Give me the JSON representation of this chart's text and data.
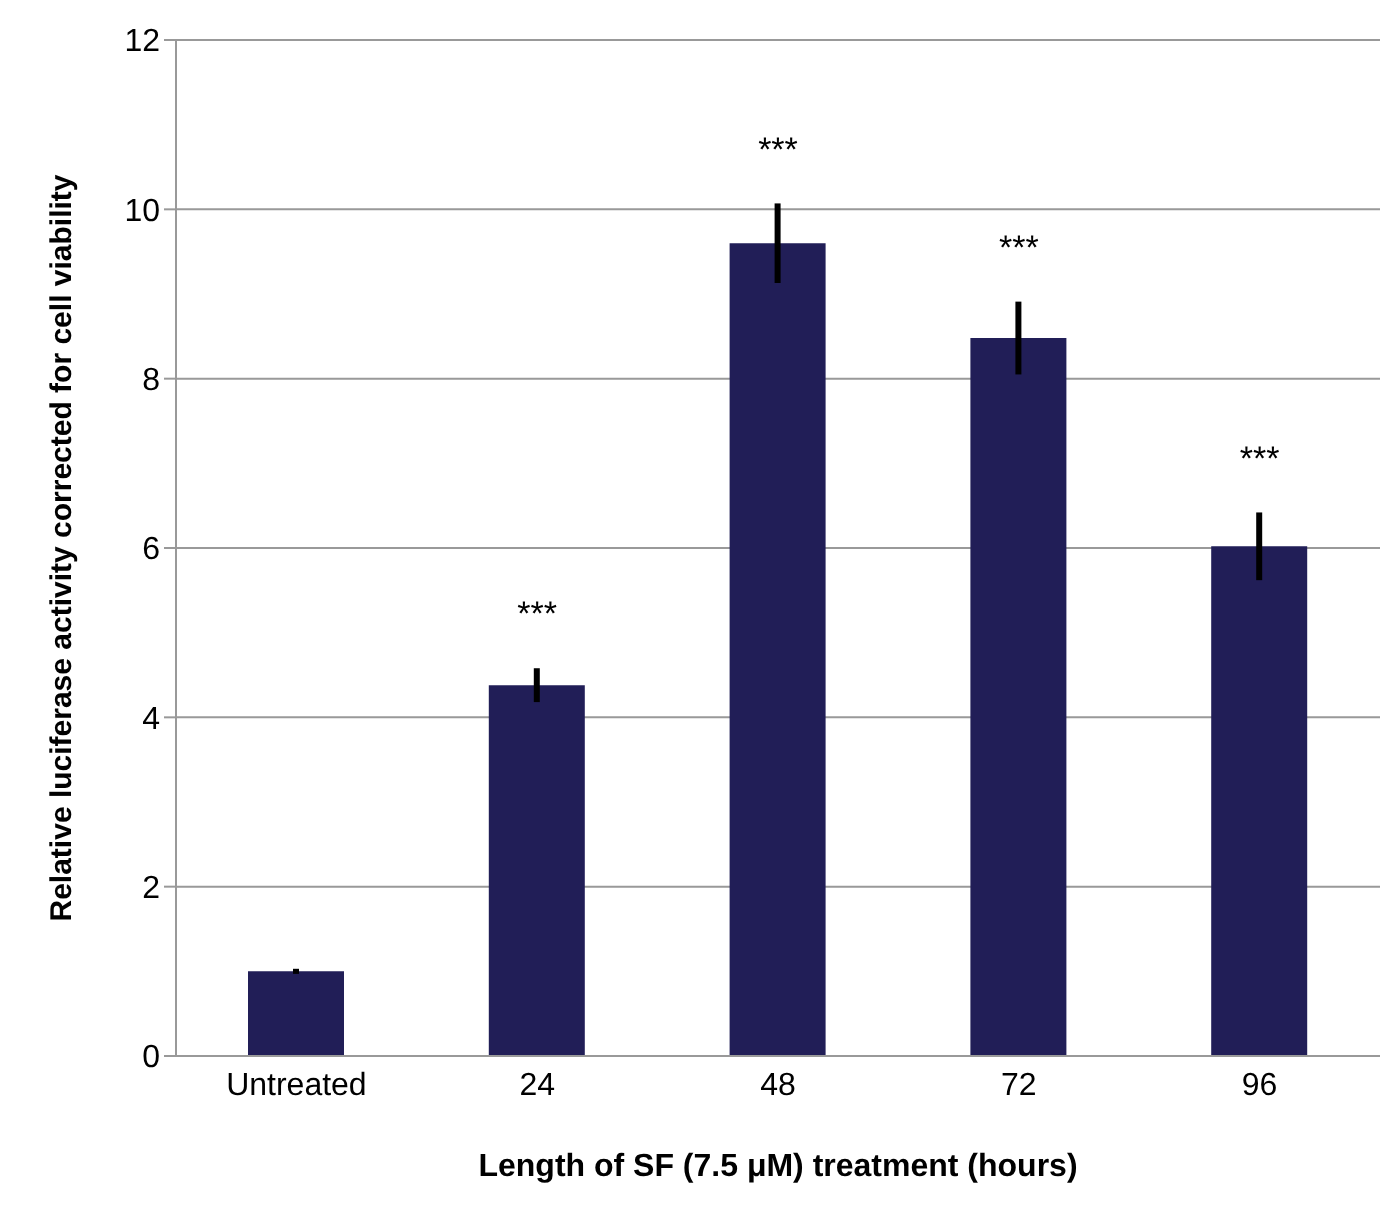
{
  "chart_data": {
    "type": "bar",
    "xlabel": "Length of SF (7.5 μM) treatment (hours)",
    "ylabel": "Relative luciferase activity corrected for cell viability",
    "categories": [
      "Untreated",
      "24",
      "48",
      "72",
      "96"
    ],
    "values": [
      1.0,
      4.38,
      9.6,
      8.48,
      6.02
    ],
    "errors": [
      0.03,
      0.2,
      0.47,
      0.43,
      0.4
    ],
    "color": "#211e57",
    "ylim": [
      0,
      12
    ],
    "yticks": [
      0,
      2,
      4,
      6,
      8,
      10,
      12
    ],
    "grid": "y",
    "annotations": [
      {
        "text": "***",
        "x": "24",
        "y": 4.38
      },
      {
        "text": "***",
        "x": "48",
        "y": 9.6
      },
      {
        "text": "***",
        "x": "72",
        "y": 8.48
      },
      {
        "text": "***",
        "x": "96",
        "y": 6.02
      }
    ]
  }
}
